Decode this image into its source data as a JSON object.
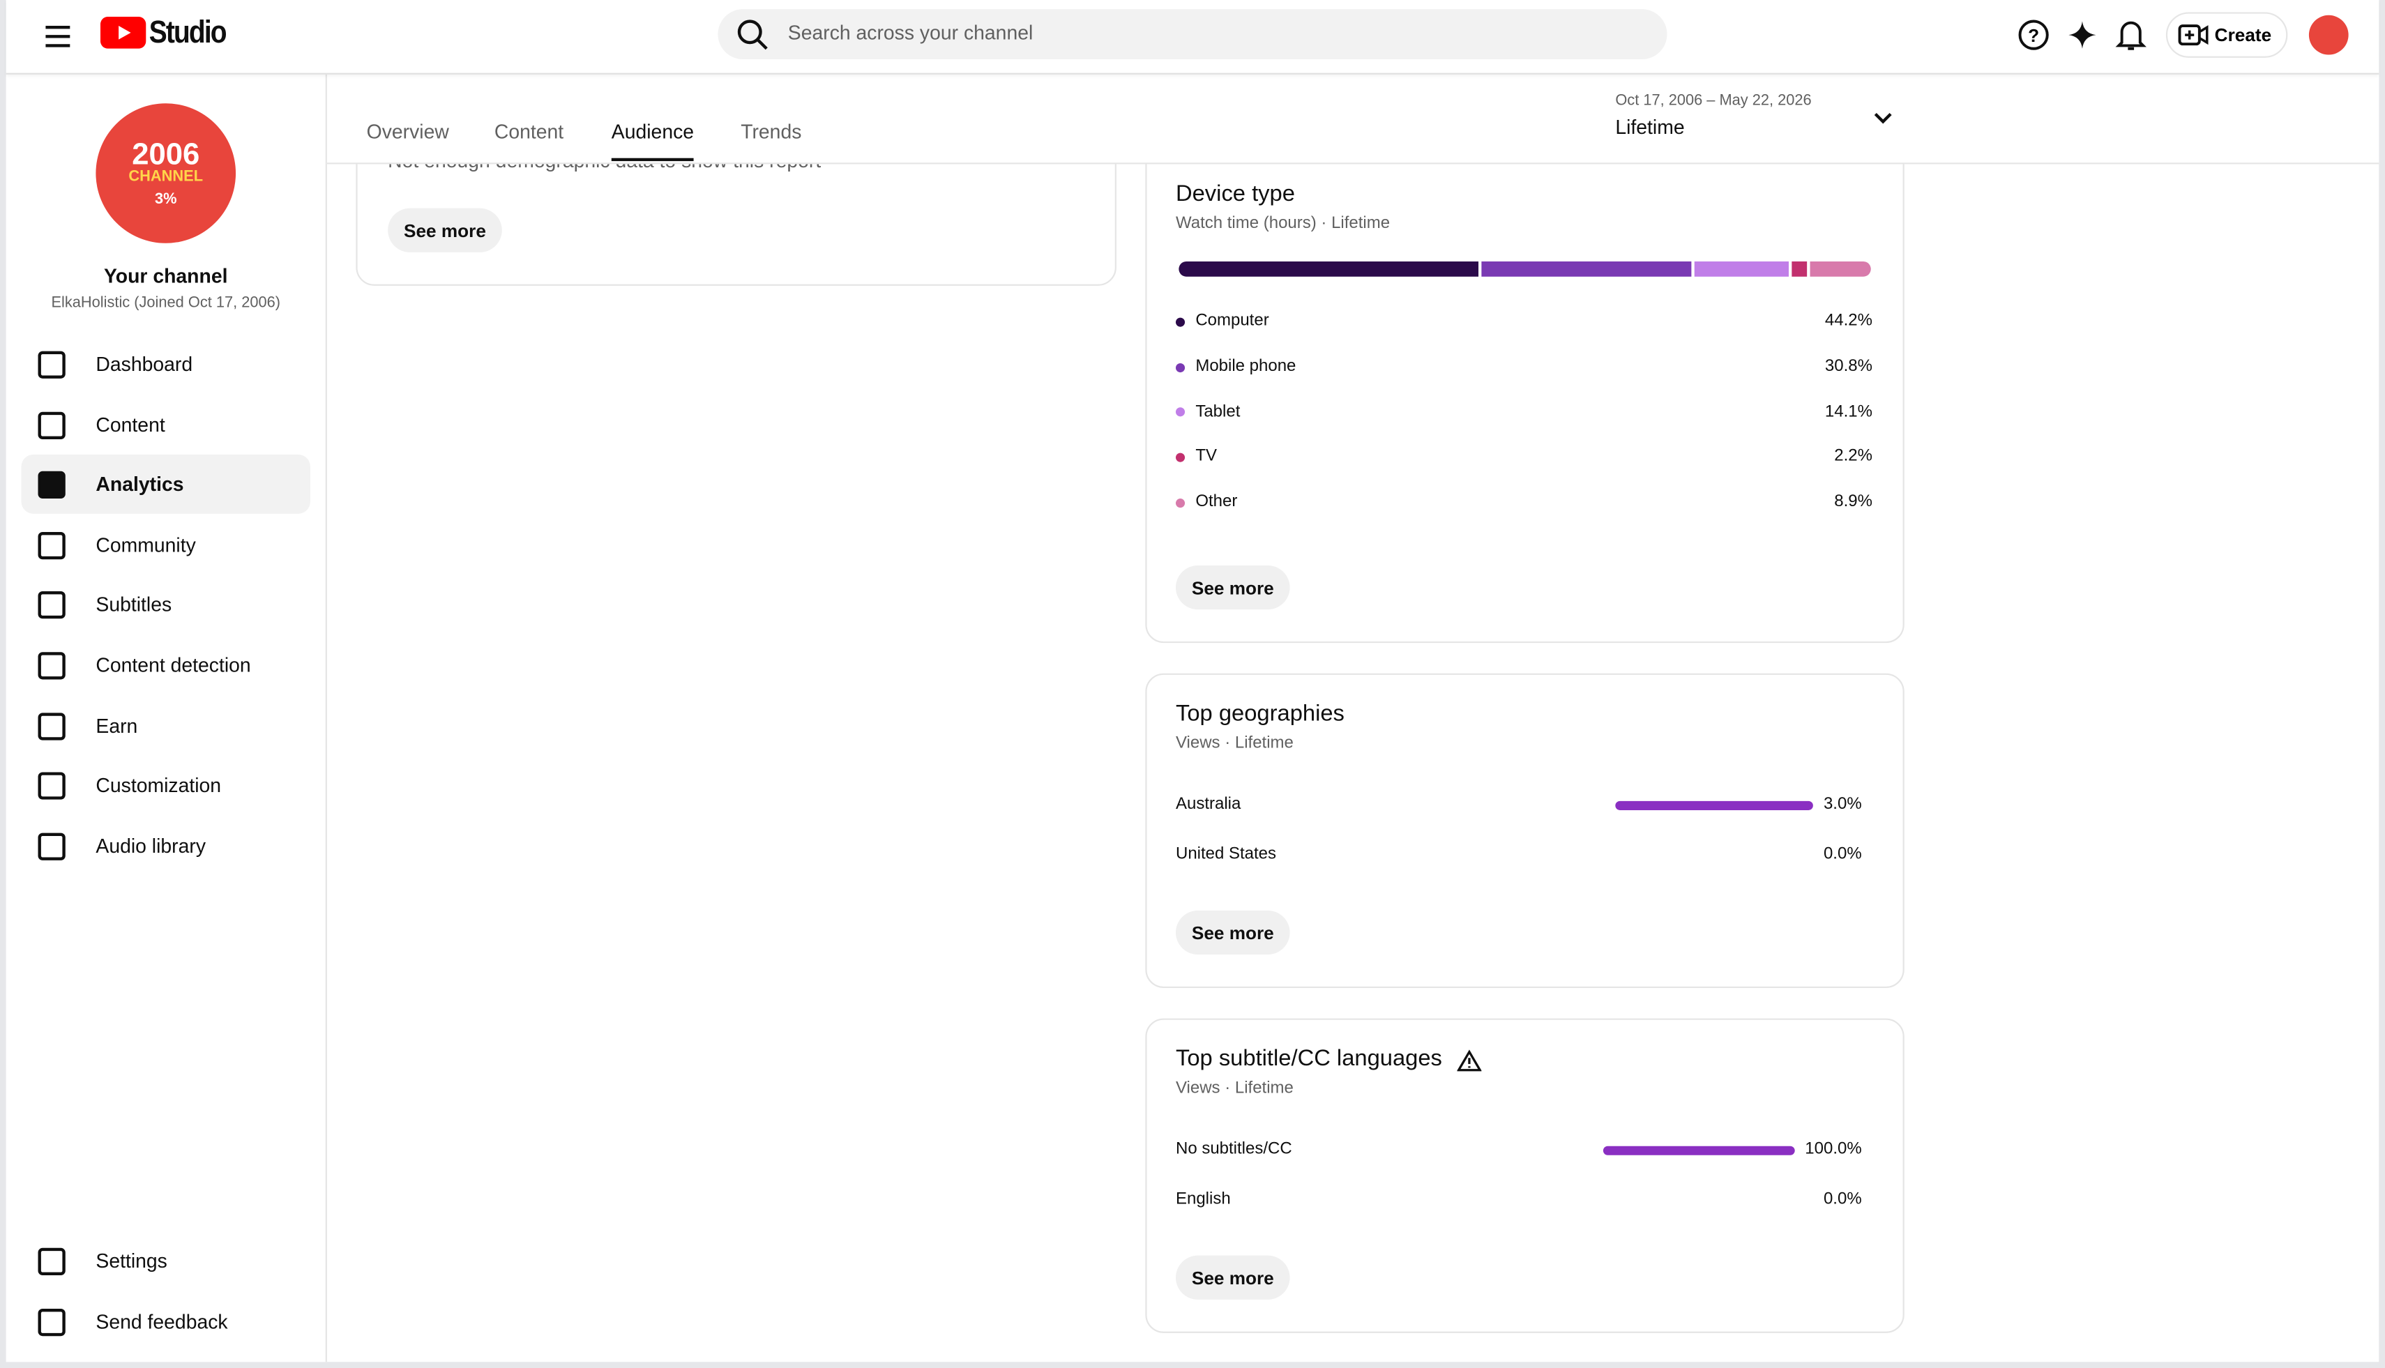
{
  "header": {
    "logo": "Studio",
    "search_placeholder": "Search across your channel",
    "create": "Create"
  },
  "sidebar": {
    "avatar_text": {
      "year": "2006",
      "word": "CHANNEL",
      "badge": "3%"
    },
    "channel_name": "Your channel",
    "channel_subtitle": "ElkaHolistic (Joined Oct 17, 2006)",
    "nav": [
      "Dashboard",
      "Content",
      "Analytics",
      "Community",
      "Subtitles",
      "Content detection",
      "Earn",
      "Customization",
      "Audio library"
    ],
    "active_index": 2,
    "nav_bottom": [
      "Settings",
      "Send feedback"
    ]
  },
  "tabs": {
    "items": [
      "Overview",
      "Content",
      "Audience",
      "Trends"
    ],
    "active_index": 2
  },
  "date_range": {
    "range": "Oct 17, 2006 – May 22, 2026",
    "label": "Lifetime"
  },
  "demographics": {
    "message": "Not enough demographic data to show this report",
    "button": "See more"
  },
  "device_type": {
    "title": "Device type",
    "subtitle": "Watch time (hours) · Lifetime",
    "button": "See more",
    "items": [
      {
        "name": "Computer",
        "value": 44.2,
        "label": "44.2%",
        "color": "#2b0a4a"
      },
      {
        "name": "Mobile phone",
        "value": 30.8,
        "label": "30.8%",
        "color": "#7a3ab3"
      },
      {
        "name": "Tablet",
        "value": 14.1,
        "label": "14.1%",
        "color": "#c07ee8"
      },
      {
        "name": "TV",
        "value": 2.2,
        "label": "2.2%",
        "color": "#c2306e"
      },
      {
        "name": "Other",
        "value": 8.9,
        "label": "8.9%",
        "color": "#d87aab"
      }
    ]
  },
  "top_geographies": {
    "title": "Top geographies",
    "subtitle": "Views · Lifetime",
    "button": "See more",
    "bar_color": "#8a2fc2",
    "items": [
      {
        "name": "Australia",
        "value": 3.0,
        "label": "3.0%"
      },
      {
        "name": "United States",
        "value": 0.0,
        "label": "0.0%"
      }
    ]
  },
  "top_languages": {
    "title": "Top subtitle/CC languages",
    "subtitle": "Views · Lifetime",
    "button": "See more",
    "bar_color": "#8a2fc2",
    "items": [
      {
        "name": "No subtitles/CC",
        "value": 100.0,
        "label": "100.0%"
      },
      {
        "name": "English",
        "value": 0.0,
        "label": "0.0%"
      }
    ]
  }
}
